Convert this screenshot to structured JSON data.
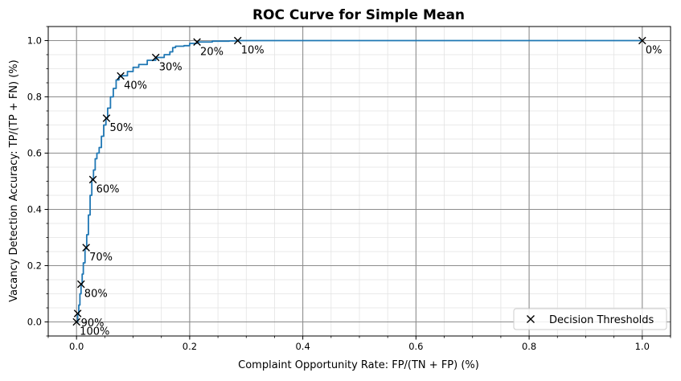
{
  "chart_data": {
    "type": "line",
    "title": "ROC Curve for Simple Mean",
    "xlabel": "Complaint Opportunity Rate: FP/(TN + FP) (%)",
    "ylabel": "Vacancy Detection Accuracy: TP/(TP + FN) (%)",
    "xlim": [
      -0.05,
      1.05
    ],
    "ylim": [
      -0.05,
      1.05
    ],
    "xticks": [
      "0.0",
      "0.2",
      "0.4",
      "0.6",
      "0.8",
      "1.0"
    ],
    "yticks": [
      "0.0",
      "0.2",
      "0.4",
      "0.6",
      "0.8",
      "1.0"
    ],
    "grid": "major and minor",
    "legend_position": "lower-right",
    "colors": {
      "curve": "#1f77b4",
      "marker": "#000000",
      "major_grid": "#8c8c8c",
      "minor_grid": "#e3e3e3"
    },
    "series": [
      {
        "x": [
          0.0,
          0.002,
          0.004,
          0.006,
          0.008,
          0.01,
          0.012,
          0.015,
          0.018,
          0.021,
          0.024,
          0.027,
          0.03,
          0.033,
          0.036,
          0.04,
          0.044,
          0.048,
          0.052,
          0.055,
          0.06,
          0.065,
          0.07,
          0.075,
          0.08,
          0.09,
          0.1,
          0.11,
          0.125,
          0.14,
          0.155,
          0.165,
          0.17,
          0.175,
          0.19,
          0.2,
          0.213,
          0.24,
          0.27,
          0.285,
          0.35,
          0.5,
          0.7,
          0.9,
          1.0
        ],
        "y": [
          0.0,
          0.03,
          0.06,
          0.1,
          0.135,
          0.17,
          0.21,
          0.26,
          0.31,
          0.38,
          0.45,
          0.505,
          0.54,
          0.58,
          0.6,
          0.62,
          0.66,
          0.7,
          0.725,
          0.76,
          0.8,
          0.83,
          0.86,
          0.872,
          0.875,
          0.89,
          0.905,
          0.915,
          0.93,
          0.94,
          0.95,
          0.96,
          0.975,
          0.98,
          0.982,
          0.99,
          0.995,
          0.998,
          0.999,
          1.0,
          1.0,
          1.0,
          1.0,
          1.0,
          1.0
        ]
      }
    ],
    "thresholds": {
      "legend_label": "Decision Thresholds",
      "points": [
        {
          "label": "0%",
          "x": 1.0,
          "y": 1.0
        },
        {
          "label": "10%",
          "x": 0.285,
          "y": 1.0
        },
        {
          "label": "20%",
          "x": 0.213,
          "y": 0.995
        },
        {
          "label": "30%",
          "x": 0.14,
          "y": 0.94
        },
        {
          "label": "40%",
          "x": 0.078,
          "y": 0.874
        },
        {
          "label": "50%",
          "x": 0.053,
          "y": 0.724
        },
        {
          "label": "60%",
          "x": 0.029,
          "y": 0.506
        },
        {
          "label": "70%",
          "x": 0.017,
          "y": 0.264
        },
        {
          "label": "80%",
          "x": 0.008,
          "y": 0.134
        },
        {
          "label": "90%",
          "x": 0.002,
          "y": 0.03
        },
        {
          "label": "100%",
          "x": 0.0,
          "y": 0.0
        }
      ]
    }
  }
}
